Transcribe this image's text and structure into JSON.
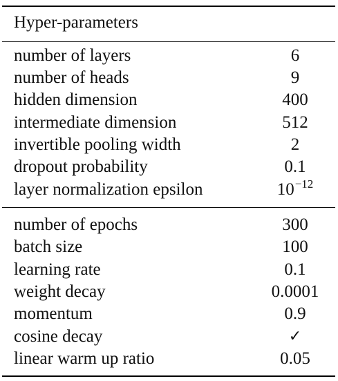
{
  "header": {
    "title": "Hyper-parameters"
  },
  "model_params": [
    {
      "label": "number of layers",
      "value": "6"
    },
    {
      "label": "number of heads",
      "value": "9"
    },
    {
      "label": "hidden dimension",
      "value": "400"
    },
    {
      "label": "intermediate dimension",
      "value": "512"
    },
    {
      "label": "invertible pooling width",
      "value": "2"
    },
    {
      "label": "dropout probability",
      "value": "0.1"
    },
    {
      "label": "layer normalization epsilon",
      "value_base": "10",
      "value_exp": "−12"
    }
  ],
  "training_params": [
    {
      "label": "number of epochs",
      "value": "300"
    },
    {
      "label": "batch size",
      "value": "100"
    },
    {
      "label": "learning rate",
      "value": "0.1"
    },
    {
      "label": "weight decay",
      "value": "0.0001"
    },
    {
      "label": "momentum",
      "value": "0.9"
    },
    {
      "label": "cosine decay",
      "value": "✓"
    },
    {
      "label": "linear warm up ratio",
      "value": "0.05"
    }
  ]
}
